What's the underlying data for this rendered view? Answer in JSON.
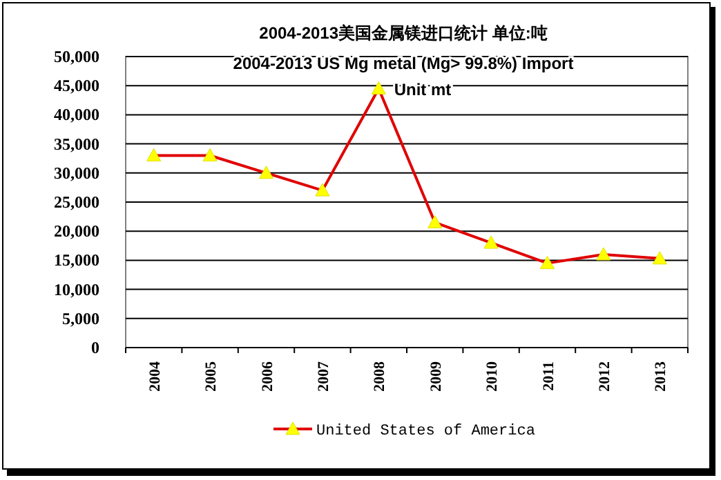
{
  "chart_data": {
    "type": "line",
    "title": "2004-2013美国金属镁进口统计 单位:吨",
    "subtitle": "2004-2013 US Mg metal (Mg> 99.8%) Import\nUnit mt",
    "categories": [
      "2004",
      "2005",
      "2006",
      "2007",
      "2008",
      "2009",
      "2010",
      "2011",
      "2012",
      "2013"
    ],
    "series": [
      {
        "name": "United States of America",
        "color": "#e00000",
        "values": [
          33000,
          33000,
          30000,
          27000,
          44500,
          21500,
          18000,
          14500,
          16000,
          15300
        ]
      }
    ],
    "ylim": [
      0,
      50000
    ],
    "yticks": [
      0,
      {
        "value": 5000,
        "label": "5,000"
      },
      {
        "value": 10000,
        "label": "10,000"
      },
      {
        "value": 15000,
        "label": "15,000"
      },
      {
        "value": 20000,
        "label": "20,000"
      },
      {
        "value": 25000,
        "label": "25,000"
      },
      {
        "value": 30000,
        "label": "30,000"
      },
      {
        "value": 35000,
        "label": "35,000"
      },
      {
        "value": 40000,
        "label": "40,000"
      },
      {
        "value": 45000,
        "label": "45,000"
      },
      {
        "value": 50000,
        "label": "50,000"
      }
    ],
    "grid": "y",
    "legend": "bottom",
    "marker": "triangle",
    "line_style": "solid"
  }
}
